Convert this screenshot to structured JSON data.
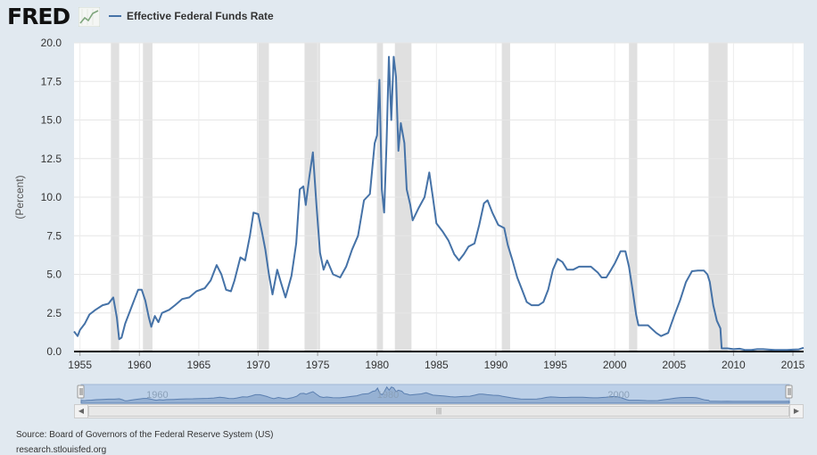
{
  "header": {
    "logo": "FRED",
    "logo_icon": "trend-line-icon"
  },
  "colors": {
    "series": "#4572a7",
    "recession": "#e0e0e0",
    "background": "#e1e9f0",
    "navigator_fill": "#bcd0e8",
    "navigator_series": "#7d9dc4"
  },
  "chart_data": {
    "type": "line",
    "title": "",
    "xlabel": "",
    "ylabel": "(Percent)",
    "xlim": [
      1954.5,
      2015.9
    ],
    "ylim": [
      0,
      20
    ],
    "grid": true,
    "legend_position": "top-left",
    "x_ticks": [
      "1955",
      "1960",
      "1965",
      "1970",
      "1975",
      "1980",
      "1985",
      "1990",
      "1995",
      "2000",
      "2005",
      "2010",
      "2015"
    ],
    "y_ticks": [
      "0.0",
      "2.5",
      "5.0",
      "7.5",
      "10.0",
      "12.5",
      "15.0",
      "17.5",
      "20.0"
    ],
    "recessions": [
      [
        1957.6,
        1958.3
      ],
      [
        1960.3,
        1961.1
      ],
      [
        1969.9,
        1970.9
      ],
      [
        1973.9,
        1975.2
      ],
      [
        1980.0,
        1980.5
      ],
      [
        1981.5,
        1982.9
      ],
      [
        1990.5,
        1991.2
      ],
      [
        2001.2,
        2001.9
      ],
      [
        2007.9,
        2009.5
      ]
    ],
    "series": [
      {
        "name": "Effective Federal Funds Rate",
        "x": [
          1954.5,
          1954.8,
          1955.0,
          1955.4,
          1955.8,
          1956.3,
          1956.9,
          1957.4,
          1957.8,
          1958.1,
          1958.3,
          1958.5,
          1958.8,
          1959.2,
          1959.6,
          1959.9,
          1960.2,
          1960.5,
          1960.8,
          1961.0,
          1961.3,
          1961.6,
          1961.9,
          1962.5,
          1963.0,
          1963.6,
          1964.2,
          1964.8,
          1965.5,
          1966.0,
          1966.5,
          1966.9,
          1967.3,
          1967.7,
          1968.0,
          1968.5,
          1968.9,
          1969.3,
          1969.6,
          1970.0,
          1970.3,
          1970.6,
          1970.9,
          1971.2,
          1971.6,
          1971.9,
          1972.3,
          1972.8,
          1973.2,
          1973.5,
          1973.8,
          1974.0,
          1974.3,
          1974.6,
          1974.9,
          1975.2,
          1975.5,
          1975.8,
          1976.3,
          1976.9,
          1977.4,
          1977.9,
          1978.4,
          1978.9,
          1979.4,
          1979.8,
          1980.0,
          1980.2,
          1980.4,
          1980.6,
          1980.8,
          1981.0,
          1981.2,
          1981.4,
          1981.6,
          1981.8,
          1982.0,
          1982.3,
          1982.5,
          1982.8,
          1983.0,
          1983.5,
          1984.0,
          1984.4,
          1984.7,
          1985.0,
          1985.5,
          1986.0,
          1986.5,
          1986.9,
          1987.3,
          1987.7,
          1988.2,
          1988.6,
          1989.0,
          1989.3,
          1989.7,
          1990.2,
          1990.7,
          1991.0,
          1991.4,
          1991.8,
          1992.2,
          1992.6,
          1993.0,
          1993.6,
          1994.0,
          1994.4,
          1994.8,
          1995.2,
          1995.6,
          1996.0,
          1996.5,
          1997.0,
          1997.5,
          1998.0,
          1998.6,
          1998.9,
          1999.3,
          1999.7,
          2000.0,
          2000.5,
          2000.9,
          2001.2,
          2001.5,
          2001.8,
          2002.0,
          2002.8,
          2003.5,
          2003.9,
          2004.5,
          2005.0,
          2005.5,
          2006.0,
          2006.5,
          2007.0,
          2007.5,
          2007.8,
          2008.0,
          2008.3,
          2008.6,
          2008.9,
          2009.0,
          2009.5,
          2010.0,
          2010.5,
          2011.0,
          2011.5,
          2012.0,
          2012.5,
          2013.0,
          2013.5,
          2014.0,
          2014.5,
          2015.0,
          2015.5,
          2015.9
        ],
        "y": [
          1.3,
          1.0,
          1.4,
          1.8,
          2.4,
          2.7,
          3.0,
          3.1,
          3.5,
          2.2,
          0.8,
          0.9,
          1.8,
          2.6,
          3.4,
          4.0,
          4.0,
          3.3,
          2.2,
          1.6,
          2.3,
          1.9,
          2.5,
          2.7,
          3.0,
          3.4,
          3.5,
          3.9,
          4.1,
          4.6,
          5.6,
          5.0,
          4.0,
          3.9,
          4.6,
          6.1,
          5.9,
          7.5,
          9.0,
          8.9,
          7.8,
          6.6,
          5.0,
          3.7,
          5.3,
          4.5,
          3.5,
          4.9,
          7.0,
          10.5,
          10.7,
          9.5,
          11.3,
          12.9,
          9.5,
          6.4,
          5.3,
          5.9,
          5.0,
          4.8,
          5.5,
          6.6,
          7.5,
          9.8,
          10.2,
          13.5,
          14.0,
          17.6,
          10.5,
          9.0,
          13.5,
          19.1,
          15.0,
          19.1,
          17.8,
          13.0,
          14.8,
          13.5,
          10.5,
          9.5,
          8.5,
          9.3,
          10.0,
          11.6,
          10.0,
          8.3,
          7.8,
          7.2,
          6.3,
          5.9,
          6.3,
          6.8,
          7.0,
          8.2,
          9.6,
          9.8,
          9.0,
          8.2,
          8.0,
          6.9,
          5.9,
          4.8,
          4.0,
          3.2,
          3.0,
          3.0,
          3.2,
          4.0,
          5.3,
          6.0,
          5.8,
          5.3,
          5.3,
          5.5,
          5.5,
          5.5,
          5.1,
          4.8,
          4.8,
          5.3,
          5.7,
          6.5,
          6.5,
          5.5,
          4.0,
          2.4,
          1.7,
          1.7,
          1.2,
          1.0,
          1.2,
          2.3,
          3.3,
          4.5,
          5.2,
          5.25,
          5.25,
          5.0,
          4.5,
          3.0,
          2.0,
          1.5,
          0.2,
          0.2,
          0.15,
          0.18,
          0.1,
          0.1,
          0.15,
          0.15,
          0.12,
          0.1,
          0.1,
          0.1,
          0.12,
          0.14,
          0.24
        ]
      }
    ],
    "navigator": {
      "x_labels": [
        "1960",
        "1980",
        "2000"
      ],
      "xlim": [
        1954.5,
        2015.9
      ]
    }
  },
  "footer": {
    "source": "Source: Board of Governors of the Federal Reserve System (US)",
    "site": "research.stlouisfed.org"
  }
}
